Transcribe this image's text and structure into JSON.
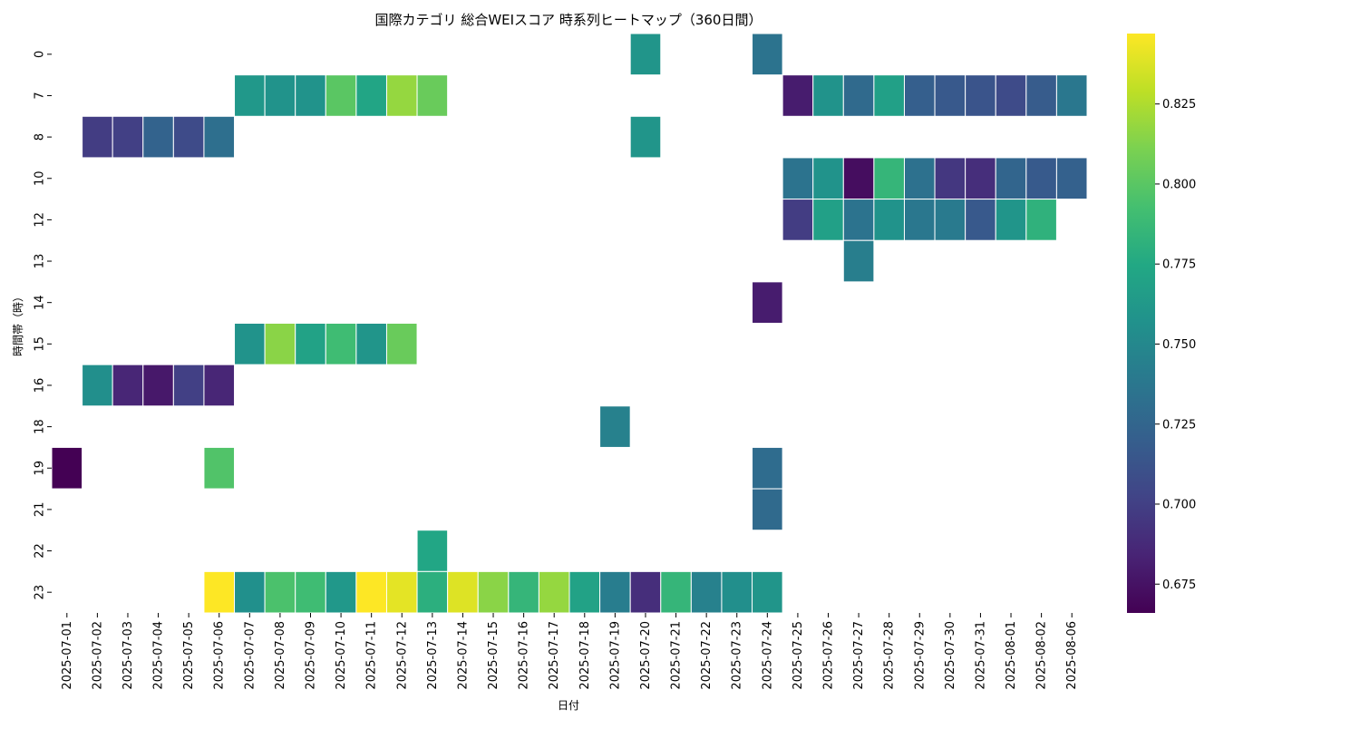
{
  "chart_data": {
    "type": "heatmap",
    "title": "国際カテゴリ 総合WEIスコア 時系列ヒートマップ（360日間）",
    "xlabel": "日付",
    "ylabel": "時間帯（時）",
    "colormap": "viridis",
    "zlim": [
      0.666,
      0.847
    ],
    "colorbar_ticks": [
      "0.675",
      "0.700",
      "0.725",
      "0.750",
      "0.775",
      "0.800",
      "0.825"
    ],
    "colorbar_tick_values": [
      0.675,
      0.7,
      0.725,
      0.75,
      0.775,
      0.8,
      0.825
    ],
    "x": [
      "2025-07-01",
      "2025-07-02",
      "2025-07-03",
      "2025-07-04",
      "2025-07-05",
      "2025-07-06",
      "2025-07-07",
      "2025-07-08",
      "2025-07-09",
      "2025-07-10",
      "2025-07-11",
      "2025-07-12",
      "2025-07-13",
      "2025-07-14",
      "2025-07-15",
      "2025-07-16",
      "2025-07-17",
      "2025-07-18",
      "2025-07-19",
      "2025-07-20",
      "2025-07-21",
      "2025-07-22",
      "2025-07-23",
      "2025-07-24",
      "2025-07-25",
      "2025-07-26",
      "2025-07-27",
      "2025-07-28",
      "2025-07-29",
      "2025-07-30",
      "2025-07-31",
      "2025-08-01",
      "2025-08-02",
      "2025-08-06"
    ],
    "y": [
      "0",
      "7",
      "8",
      "10",
      "12",
      "13",
      "14",
      "15",
      "16",
      "18",
      "19",
      "21",
      "22",
      "23"
    ],
    "values": [
      [
        null,
        null,
        null,
        null,
        null,
        null,
        null,
        null,
        null,
        null,
        null,
        null,
        null,
        null,
        null,
        null,
        null,
        null,
        null,
        0.76,
        null,
        null,
        null,
        0.735,
        null,
        null,
        null,
        null,
        null,
        null,
        null,
        null,
        null,
        null
      ],
      [
        null,
        null,
        null,
        null,
        null,
        null,
        0.762,
        0.758,
        0.758,
        0.8,
        0.772,
        0.818,
        0.805,
        null,
        null,
        null,
        null,
        null,
        null,
        null,
        null,
        null,
        null,
        null,
        0.68,
        0.758,
        0.728,
        0.768,
        0.72,
        0.716,
        0.713,
        0.707,
        0.718,
        0.738
      ],
      [
        null,
        0.698,
        0.7,
        0.723,
        0.707,
        0.732,
        null,
        null,
        null,
        null,
        null,
        null,
        null,
        null,
        null,
        null,
        null,
        null,
        null,
        0.76,
        null,
        null,
        null,
        null,
        null,
        null,
        null,
        null,
        null,
        null,
        null,
        null,
        null,
        null
      ],
      [
        null,
        null,
        null,
        null,
        null,
        null,
        null,
        null,
        null,
        null,
        null,
        null,
        null,
        null,
        null,
        null,
        null,
        null,
        null,
        null,
        null,
        null,
        null,
        null,
        0.735,
        0.758,
        0.672,
        0.785,
        0.733,
        0.695,
        0.69,
        0.725,
        0.717,
        0.722
      ],
      [
        null,
        null,
        null,
        null,
        null,
        null,
        null,
        null,
        null,
        null,
        null,
        null,
        null,
        null,
        null,
        null,
        null,
        null,
        null,
        null,
        null,
        null,
        null,
        null,
        0.698,
        0.768,
        0.735,
        0.758,
        0.738,
        0.74,
        0.716,
        0.76,
        0.782,
        null
      ],
      [
        null,
        null,
        null,
        null,
        null,
        null,
        null,
        null,
        null,
        null,
        null,
        null,
        null,
        null,
        null,
        null,
        null,
        null,
        null,
        null,
        null,
        null,
        null,
        null,
        null,
        null,
        0.743,
        null,
        null,
        null,
        null,
        null,
        null,
        null
      ],
      [
        null,
        null,
        null,
        null,
        null,
        null,
        null,
        null,
        null,
        null,
        null,
        null,
        null,
        null,
        null,
        null,
        null,
        null,
        null,
        null,
        null,
        null,
        null,
        0.68,
        null,
        null,
        null,
        null,
        null,
        null,
        null,
        null,
        null,
        null
      ],
      [
        null,
        null,
        null,
        null,
        null,
        null,
        0.758,
        0.815,
        0.77,
        0.79,
        0.76,
        0.805,
        null,
        null,
        null,
        null,
        null,
        null,
        null,
        null,
        null,
        null,
        null,
        null,
        null,
        null,
        null,
        null,
        null,
        null,
        null,
        null,
        null,
        null
      ],
      [
        null,
        0.755,
        0.685,
        0.678,
        0.7,
        0.685,
        null,
        null,
        null,
        null,
        null,
        null,
        null,
        null,
        null,
        null,
        null,
        null,
        null,
        null,
        null,
        null,
        null,
        null,
        null,
        null,
        null,
        null,
        null,
        null,
        null,
        null,
        null,
        null
      ],
      [
        null,
        null,
        null,
        null,
        null,
        null,
        null,
        null,
        null,
        null,
        null,
        null,
        null,
        null,
        null,
        null,
        null,
        null,
        0.745,
        null,
        null,
        null,
        null,
        null,
        null,
        null,
        null,
        null,
        null,
        null,
        null,
        null,
        null,
        null
      ],
      [
        0.666,
        null,
        null,
        null,
        null,
        0.797,
        null,
        null,
        null,
        null,
        null,
        null,
        null,
        null,
        null,
        null,
        null,
        null,
        null,
        null,
        null,
        null,
        null,
        0.73,
        null,
        null,
        null,
        null,
        null,
        null,
        null,
        null,
        null,
        null
      ],
      [
        null,
        null,
        null,
        null,
        null,
        null,
        null,
        null,
        null,
        null,
        null,
        null,
        null,
        null,
        null,
        null,
        null,
        null,
        null,
        null,
        null,
        null,
        null,
        0.728,
        null,
        null,
        null,
        null,
        null,
        null,
        null,
        null,
        null,
        null
      ],
      [
        null,
        null,
        null,
        null,
        null,
        null,
        null,
        null,
        null,
        null,
        null,
        null,
        0.773,
        null,
        null,
        null,
        null,
        null,
        null,
        null,
        null,
        null,
        null,
        null,
        null,
        null,
        null,
        null,
        null,
        null,
        null,
        null,
        null,
        null
      ],
      [
        null,
        null,
        null,
        null,
        null,
        0.847,
        0.756,
        0.795,
        0.79,
        0.762,
        0.847,
        0.84,
        0.78,
        0.838,
        0.815,
        0.785,
        0.818,
        0.77,
        0.742,
        0.69,
        0.785,
        0.745,
        0.755,
        0.76,
        null,
        null,
        null,
        null,
        null,
        null,
        null,
        null,
        null,
        null
      ]
    ]
  }
}
